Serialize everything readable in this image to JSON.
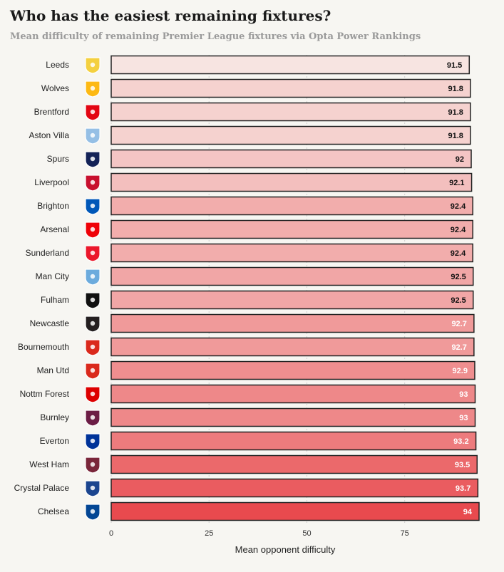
{
  "header": {
    "title": "Who has the easiest remaining fixtures?",
    "subtitle": "Mean difficulty of remaining Premier League fixtures via Opta Power Rankings"
  },
  "chart_data": {
    "type": "bar",
    "orientation": "horizontal",
    "categories": [
      "Leeds",
      "Wolves",
      "Brentford",
      "Aston Villa",
      "Spurs",
      "Liverpool",
      "Brighton",
      "Arsenal",
      "Sunderland",
      "Man City",
      "Fulham",
      "Newcastle",
      "Bournemouth",
      "Man Utd",
      "Nottm Forest",
      "Burnley",
      "Everton",
      "West Ham",
      "Crystal Palace",
      "Chelsea"
    ],
    "values": [
      91.5,
      91.8,
      91.8,
      91.8,
      92,
      92.1,
      92.4,
      92.4,
      92.4,
      92.5,
      92.5,
      92.7,
      92.7,
      92.9,
      93,
      93,
      93.2,
      93.5,
      93.7,
      94
    ],
    "value_labels": [
      "91.5",
      "91.8",
      "91.8",
      "91.8",
      "92",
      "92.1",
      "92.4",
      "92.4",
      "92.4",
      "92.5",
      "92.5",
      "92.7",
      "92.7",
      "92.9",
      "93",
      "93",
      "93.2",
      "93.5",
      "93.7",
      "94"
    ],
    "xlabel": "Mean opponent difficulty",
    "ylabel": "",
    "xlim": [
      0,
      94
    ],
    "xticks": [
      0,
      25,
      50,
      75
    ],
    "grid": true,
    "bar_outline_color": "#222222",
    "color_scale": [
      "#f7e4e1",
      "#e84a4e"
    ],
    "value_label_colors": {
      "dark": "#111111",
      "light": "#ffffff"
    },
    "team_badge_colors": {
      "Leeds": "#f4d03f",
      "Wolves": "#fdb913",
      "Brentford": "#e30613",
      "Aston Villa": "#95bfe5",
      "Spurs": "#132257",
      "Liverpool": "#c8102e",
      "Brighton": "#0057b8",
      "Arsenal": "#ef0107",
      "Sunderland": "#eb172b",
      "Man City": "#6cabdd",
      "Fulham": "#111111",
      "Newcastle": "#241f20",
      "Bournemouth": "#da291c",
      "Man Utd": "#da291c",
      "Nottm Forest": "#dd0000",
      "Burnley": "#6c1d45",
      "Everton": "#003399",
      "West Ham": "#7a263a",
      "Crystal Palace": "#1b458f",
      "Chelsea": "#034694"
    }
  }
}
